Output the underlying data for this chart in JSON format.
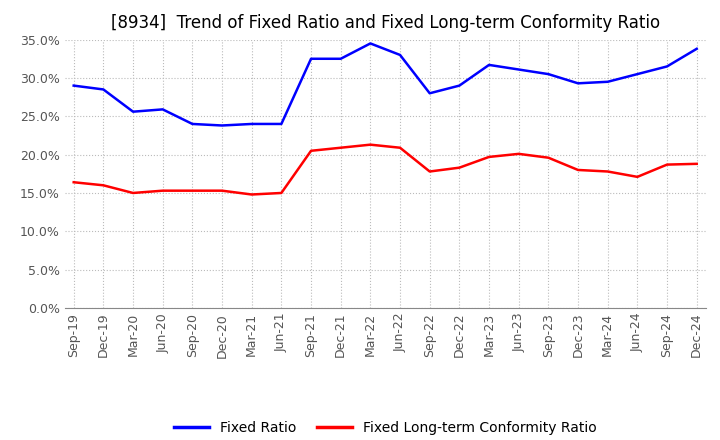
{
  "title": "[8934]  Trend of Fixed Ratio and Fixed Long-term Conformity Ratio",
  "x_labels": [
    "Sep-19",
    "Dec-19",
    "Mar-20",
    "Jun-20",
    "Sep-20",
    "Dec-20",
    "Mar-21",
    "Jun-21",
    "Sep-21",
    "Dec-21",
    "Mar-22",
    "Jun-22",
    "Sep-22",
    "Dec-22",
    "Mar-23",
    "Jun-23",
    "Sep-23",
    "Dec-23",
    "Mar-24",
    "Jun-24",
    "Sep-24",
    "Dec-24"
  ],
  "fixed_ratio": [
    29.0,
    28.5,
    25.6,
    25.9,
    24.0,
    23.8,
    24.0,
    24.0,
    32.5,
    32.5,
    34.5,
    33.0,
    28.0,
    29.0,
    31.7,
    31.1,
    30.5,
    29.3,
    29.5,
    30.5,
    31.5,
    33.8
  ],
  "fixed_lt_ratio": [
    16.4,
    16.0,
    15.0,
    15.3,
    15.3,
    15.3,
    14.8,
    15.0,
    20.5,
    20.9,
    21.3,
    20.9,
    17.8,
    18.3,
    19.7,
    20.1,
    19.6,
    18.0,
    17.8,
    17.1,
    18.7,
    18.8
  ],
  "line_color_blue": "#0000FF",
  "line_color_red": "#FF0000",
  "ylim": [
    0,
    35.0
  ],
  "yticks": [
    0.0,
    5.0,
    10.0,
    15.0,
    20.0,
    25.0,
    30.0,
    35.0
  ],
  "legend_fixed_ratio": "Fixed Ratio",
  "legend_fixed_lt": "Fixed Long-term Conformity Ratio",
  "bg_color": "#FFFFFF",
  "plot_bg_color": "#FFFFFF",
  "grid_color": "#BBBBBB",
  "title_fontsize": 12,
  "axis_fontsize": 9,
  "legend_fontsize": 10,
  "tick_label_color": "#555555"
}
